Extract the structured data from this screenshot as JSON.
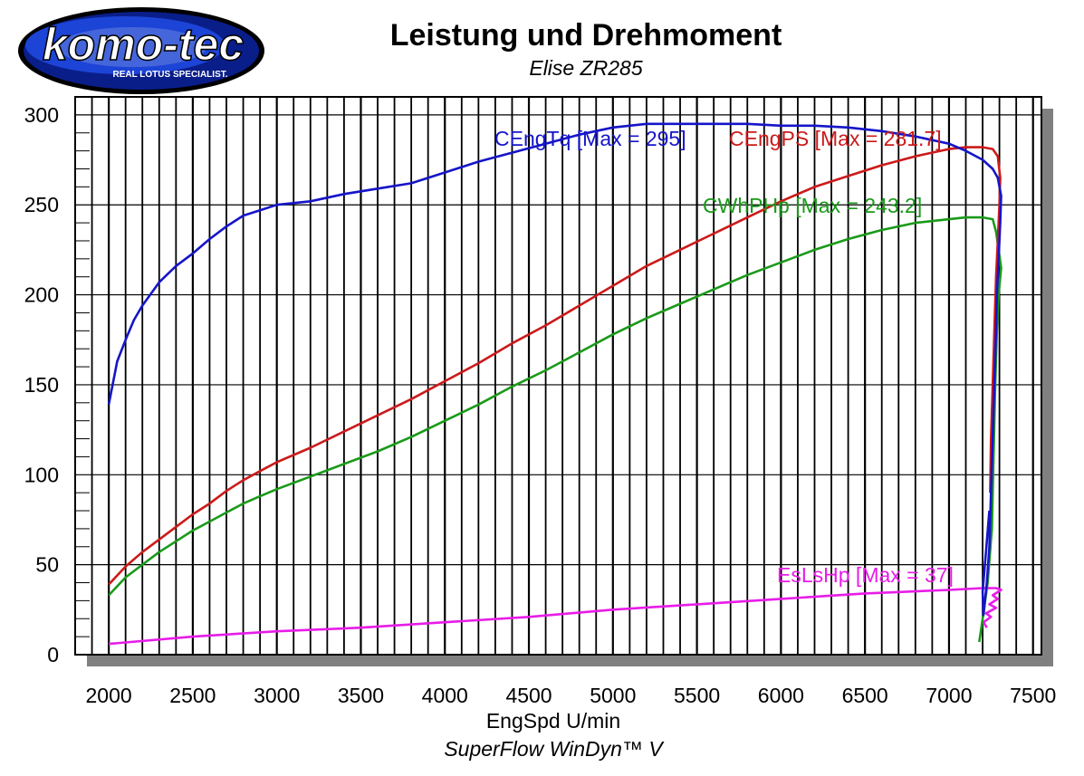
{
  "header": {
    "logo_text": "komo-tec",
    "logo_tagline": "REAL LOTUS SPECIALIST.",
    "title": "Leistung und Drehmoment",
    "subtitle": "Elise ZR285",
    "footer": "SuperFlow WinDyn™ V"
  },
  "colors": {
    "torque": "#1515c8",
    "power": "#cc1a1a",
    "wheel": "#1a9a1a",
    "loss": "#e81ce8",
    "shadow": "#808080"
  },
  "chart_data": {
    "type": "line",
    "title": "Leistung und Drehmoment",
    "subtitle": "Elise ZR285",
    "xlabel": "EngSpd U/min",
    "ylabel": "",
    "xlim": [
      1800,
      7550
    ],
    "ylim": [
      0,
      310
    ],
    "xticks": [
      "2000",
      "2500",
      "3000",
      "3500",
      "4000",
      "4500",
      "5000",
      "5500",
      "6000",
      "6500",
      "7000",
      "7500"
    ],
    "yticks": [
      "0",
      "50",
      "100",
      "150",
      "200",
      "250",
      "300"
    ],
    "grid": true,
    "series": [
      {
        "name": "CEngTq",
        "label": "CEngTq [Max = 295]",
        "color": "#1515c8",
        "points": [
          [
            2000,
            139
          ],
          [
            2050,
            163
          ],
          [
            2100,
            175
          ],
          [
            2150,
            186
          ],
          [
            2200,
            194
          ],
          [
            2300,
            207
          ],
          [
            2400,
            216
          ],
          [
            2500,
            223
          ],
          [
            2600,
            231
          ],
          [
            2700,
            238
          ],
          [
            2800,
            244
          ],
          [
            2900,
            247
          ],
          [
            3000,
            250
          ],
          [
            3200,
            252
          ],
          [
            3400,
            256
          ],
          [
            3600,
            259
          ],
          [
            3800,
            262
          ],
          [
            4000,
            268
          ],
          [
            4200,
            274
          ],
          [
            4400,
            279
          ],
          [
            4600,
            284
          ],
          [
            4800,
            289
          ],
          [
            5000,
            293
          ],
          [
            5200,
            295
          ],
          [
            5400,
            295
          ],
          [
            5600,
            295
          ],
          [
            5800,
            295
          ],
          [
            6000,
            294
          ],
          [
            6200,
            294
          ],
          [
            6400,
            293
          ],
          [
            6600,
            291
          ],
          [
            6800,
            288
          ],
          [
            7000,
            284
          ],
          [
            7100,
            280
          ],
          [
            7200,
            275
          ],
          [
            7260,
            270
          ],
          [
            7290,
            265
          ],
          [
            7310,
            255
          ],
          [
            7305,
            240
          ],
          [
            7295,
            220
          ],
          [
            7285,
            200
          ],
          [
            7280,
            180
          ],
          [
            7270,
            150
          ],
          [
            7260,
            120
          ],
          [
            7250,
            90
          ],
          [
            7240,
            60
          ],
          [
            7225,
            40
          ],
          [
            7205,
            22
          ],
          [
            7200,
            35
          ],
          [
            7240,
            80
          ]
        ]
      },
      {
        "name": "CEngPS",
        "label": "CEngPS [Max = 281.7]",
        "color": "#cc1a1a",
        "points": [
          [
            2000,
            39
          ],
          [
            2100,
            49
          ],
          [
            2200,
            57
          ],
          [
            2300,
            64
          ],
          [
            2400,
            71
          ],
          [
            2500,
            78
          ],
          [
            2600,
            84
          ],
          [
            2700,
            91
          ],
          [
            2800,
            97
          ],
          [
            2900,
            102
          ],
          [
            3000,
            107
          ],
          [
            3200,
            115
          ],
          [
            3400,
            124
          ],
          [
            3600,
            133
          ],
          [
            3800,
            142
          ],
          [
            4000,
            152
          ],
          [
            4200,
            162
          ],
          [
            4400,
            173
          ],
          [
            4600,
            183
          ],
          [
            4800,
            194
          ],
          [
            5000,
            205
          ],
          [
            5200,
            216
          ],
          [
            5400,
            225
          ],
          [
            5600,
            234
          ],
          [
            5800,
            243
          ],
          [
            6000,
            252
          ],
          [
            6200,
            260
          ],
          [
            6400,
            266
          ],
          [
            6600,
            272
          ],
          [
            6800,
            277
          ],
          [
            7000,
            281
          ],
          [
            7100,
            282
          ],
          [
            7200,
            282
          ],
          [
            7260,
            281
          ],
          [
            7290,
            277
          ],
          [
            7305,
            265
          ],
          [
            7300,
            250
          ],
          [
            7290,
            230
          ],
          [
            7280,
            210
          ],
          [
            7270,
            180
          ],
          [
            7260,
            150
          ],
          [
            7250,
            120
          ],
          [
            7245,
            90
          ]
        ]
      },
      {
        "name": "CWhPHp",
        "label": "CWhPHp [Max = 243.2]",
        "color": "#1a9a1a",
        "points": [
          [
            2000,
            33
          ],
          [
            2100,
            43
          ],
          [
            2200,
            50
          ],
          [
            2300,
            57
          ],
          [
            2400,
            63
          ],
          [
            2500,
            69
          ],
          [
            2600,
            74
          ],
          [
            2700,
            79
          ],
          [
            2800,
            84
          ],
          [
            2900,
            88
          ],
          [
            3000,
            92
          ],
          [
            3200,
            99
          ],
          [
            3400,
            106
          ],
          [
            3600,
            113
          ],
          [
            3800,
            121
          ],
          [
            4000,
            130
          ],
          [
            4200,
            139
          ],
          [
            4400,
            149
          ],
          [
            4600,
            158
          ],
          [
            4800,
            168
          ],
          [
            5000,
            178
          ],
          [
            5200,
            187
          ],
          [
            5400,
            195
          ],
          [
            5600,
            203
          ],
          [
            5800,
            211
          ],
          [
            6000,
            218
          ],
          [
            6200,
            225
          ],
          [
            6400,
            231
          ],
          [
            6600,
            236
          ],
          [
            6800,
            240
          ],
          [
            7000,
            242
          ],
          [
            7100,
            243
          ],
          [
            7200,
            243
          ],
          [
            7260,
            242
          ],
          [
            7280,
            235
          ],
          [
            7300,
            222
          ],
          [
            7310,
            215
          ],
          [
            7295,
            200
          ],
          [
            7285,
            180
          ],
          [
            7275,
            150
          ],
          [
            7265,
            110
          ],
          [
            7255,
            70
          ],
          [
            7230,
            40
          ],
          [
            7200,
            20
          ],
          [
            7180,
            7
          ]
        ]
      },
      {
        "name": "EsLsHp",
        "label": "EsLsHp [Max = 37]",
        "color": "#e81ce8",
        "points": [
          [
            2000,
            6
          ],
          [
            2500,
            10
          ],
          [
            3000,
            13
          ],
          [
            3500,
            15
          ],
          [
            4000,
            18
          ],
          [
            4500,
            21
          ],
          [
            5000,
            25
          ],
          [
            5500,
            28
          ],
          [
            6000,
            31
          ],
          [
            6500,
            34
          ],
          [
            7000,
            36
          ],
          [
            7200,
            37
          ],
          [
            7280,
            37
          ],
          [
            7310,
            36
          ],
          [
            7260,
            33
          ],
          [
            7290,
            31
          ],
          [
            7240,
            28
          ],
          [
            7280,
            26
          ],
          [
            7220,
            23
          ],
          [
            7250,
            21
          ],
          [
            7205,
            18
          ],
          [
            7225,
            15
          ]
        ]
      }
    ]
  }
}
